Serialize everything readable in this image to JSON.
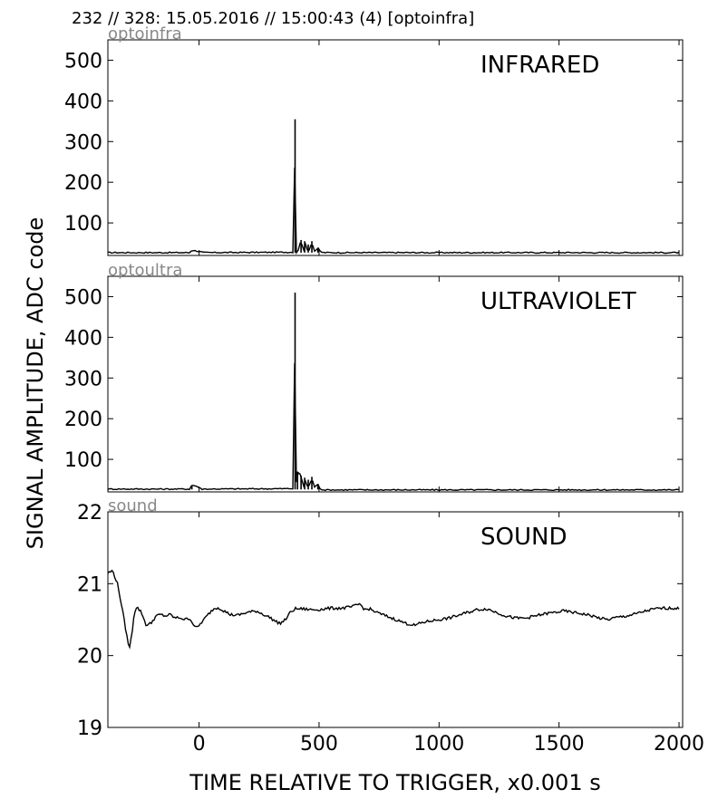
{
  "figure": {
    "header": "232 // 328:   15.05.2016 // 15:00:43 (4)  [optoinfra]",
    "ylabel": "SIGNAL AMPLITUDE,  ADC code",
    "xlabel": "TIME RELATIVE TO TRIGGER,   x0.001 s"
  },
  "chart_data": [
    {
      "type": "line",
      "channel": "optoinfra",
      "title": "INFRARED",
      "xlim": [
        -380,
        2015
      ],
      "ylim": [
        20,
        550
      ],
      "yticks": [
        100,
        200,
        300,
        400,
        500
      ],
      "baseline": 27,
      "x": [
        -380,
        -40,
        -30,
        0,
        20,
        395,
        400,
        403,
        410,
        425,
        435,
        440,
        450,
        455,
        460,
        470,
        480,
        495,
        505,
        515,
        2000
      ],
      "y": [
        27,
        27,
        33,
        30,
        27,
        28,
        355,
        28,
        27,
        58,
        30,
        55,
        30,
        47,
        30,
        55,
        30,
        38,
        30,
        27,
        27
      ],
      "color": "#000000"
    },
    {
      "type": "line",
      "channel": "optoultra",
      "title": "ULTRAVIOLET",
      "xlim": [
        -380,
        2015
      ],
      "ylim": [
        20,
        550
      ],
      "yticks": [
        100,
        200,
        300,
        400,
        500
      ],
      "baseline": 26,
      "x": [
        -380,
        -40,
        -30,
        -10,
        10,
        395,
        400,
        403,
        410,
        425,
        435,
        440,
        450,
        455,
        460,
        470,
        480,
        495,
        505,
        515,
        2000
      ],
      "y": [
        27,
        27,
        37,
        34,
        27,
        28,
        510,
        28,
        70,
        60,
        30,
        55,
        30,
        50,
        30,
        57,
        30,
        40,
        28,
        25,
        25
      ],
      "color": "#000000"
    },
    {
      "type": "line",
      "channel": "sound",
      "title": "SOUND",
      "xlim": [
        -380,
        2015
      ],
      "ylim": [
        19,
        22
      ],
      "yticks": [
        19,
        20,
        21,
        22
      ],
      "x": [
        -380,
        -360,
        -340,
        -320,
        -300,
        -290,
        -280,
        -270,
        -260,
        -240,
        -220,
        -200,
        -180,
        -160,
        -140,
        -120,
        -100,
        -80,
        -60,
        -40,
        -20,
        -10,
        0,
        20,
        40,
        60,
        80,
        100,
        130,
        160,
        200,
        240,
        270,
        300,
        320,
        340,
        360,
        380,
        400,
        430,
        460,
        500,
        550,
        600,
        640,
        670,
        690,
        710,
        740,
        780,
        820,
        860,
        900,
        930,
        960,
        1000,
        1040,
        1080,
        1120,
        1160,
        1200,
        1240,
        1280,
        1320,
        1360,
        1400,
        1440,
        1480,
        1520,
        1560,
        1600,
        1640,
        1670,
        1700,
        1740,
        1780,
        1820,
        1860,
        1900,
        1940,
        1980,
        2000
      ],
      "y": [
        21.15,
        21.18,
        21.0,
        20.65,
        20.25,
        20.1,
        20.3,
        20.6,
        20.68,
        20.6,
        20.42,
        20.45,
        20.55,
        20.57,
        20.55,
        20.57,
        20.52,
        20.53,
        20.5,
        20.52,
        20.42,
        20.38,
        20.42,
        20.5,
        20.58,
        20.65,
        20.67,
        20.63,
        20.57,
        20.56,
        20.6,
        20.62,
        20.57,
        20.52,
        20.47,
        20.45,
        20.5,
        20.6,
        20.65,
        20.65,
        20.64,
        20.64,
        20.66,
        20.66,
        20.68,
        20.72,
        20.64,
        20.65,
        20.6,
        20.55,
        20.5,
        20.45,
        20.42,
        20.46,
        20.48,
        20.5,
        20.52,
        20.56,
        20.6,
        20.64,
        20.65,
        20.6,
        20.55,
        20.52,
        20.52,
        20.55,
        20.58,
        20.6,
        20.62,
        20.6,
        20.58,
        20.55,
        20.52,
        20.5,
        20.53,
        20.55,
        20.58,
        20.62,
        20.65,
        20.66,
        20.66,
        20.65
      ],
      "color": "#000000"
    }
  ],
  "xaxis": {
    "ticks": [
      0,
      500,
      1000,
      1500,
      2000
    ]
  }
}
